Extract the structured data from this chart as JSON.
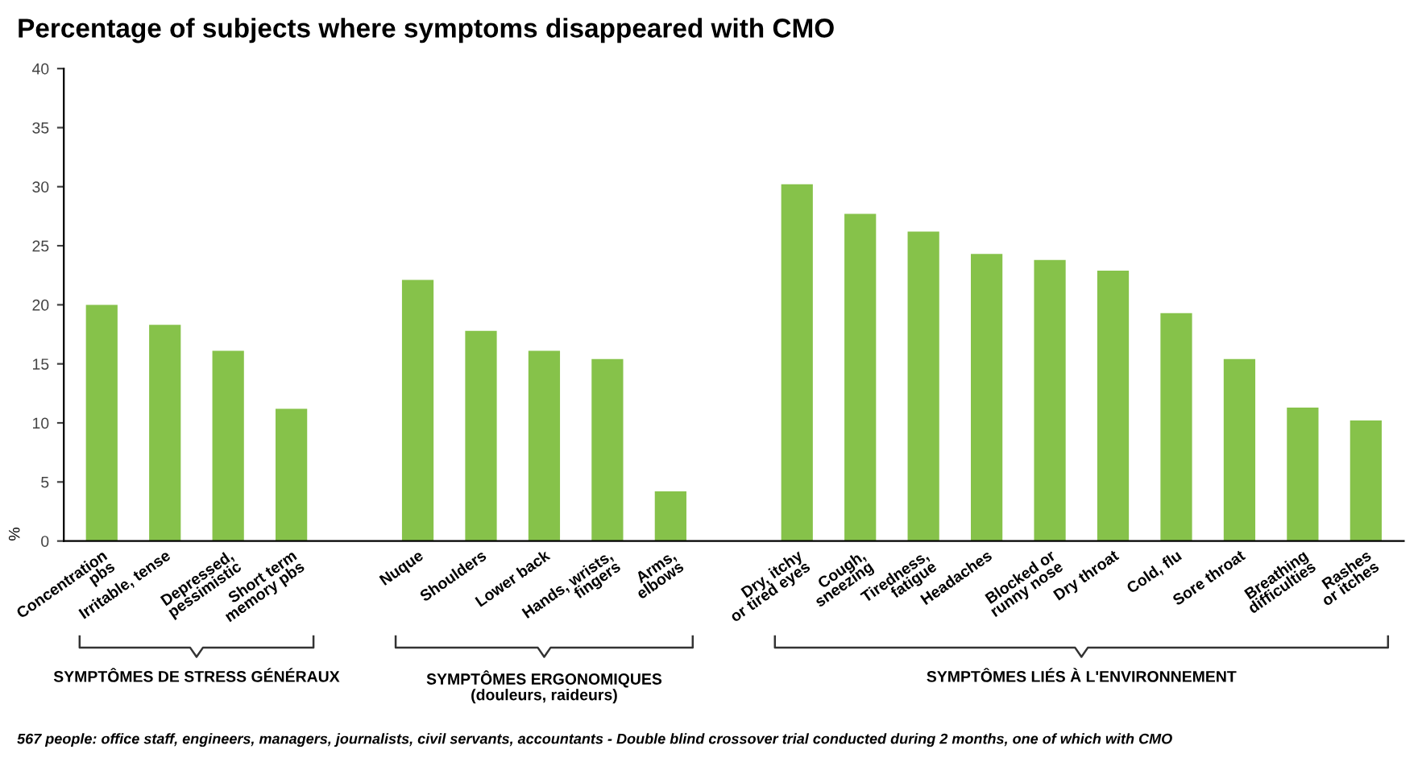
{
  "chart_data": {
    "type": "bar",
    "title": "Percentage of subjects where symptoms disappeared with CMO",
    "ylabel": "%",
    "categories": [
      "Concentration\npbs",
      "Irritable, tense",
      "Depressed,\npessimistic",
      "Short term\nmemory pbs",
      null,
      "Nuque",
      "Shoulders",
      "Lower back",
      "Hands, wrists,\nfingers",
      "Arms,\nelbows",
      null,
      "Dry, itchy\nor tired eyes",
      "Cough,\nsneezing",
      "Tiredness,\nfatigue",
      "Headaches",
      "Blocked or\nrunny nose",
      "Dry throat",
      "Cold, flu",
      "Sore throat",
      "Breathing\ndifficulties",
      "Rashes\nor itches"
    ],
    "values": [
      20,
      18.3,
      16.1,
      11.2,
      null,
      22.1,
      17.8,
      16.1,
      15.4,
      4.2,
      null,
      30.2,
      27.7,
      26.2,
      24.3,
      23.8,
      22.9,
      19.3,
      15.4,
      11.3,
      10.2
    ],
    "color": "#86c24a",
    "ylim": [
      0,
      40
    ],
    "yticks": [
      0,
      5,
      10,
      15,
      20,
      25,
      30,
      35,
      40
    ],
    "grid": false,
    "annotations": [
      "SYMPTÔMES DE STRESS GÉNÉRAUX",
      "SYMPTÔMES ERGONOMIQUES\n(douleurs, raideurs)",
      "SYMPTÔMES LIÉS À L'ENVIRONNEMENT",
      "567 people: office staff, engineers, managers, journalists, civil servants, accountants - Double blind crossover trial conducted during 2 months, one of which with CMO"
    ]
  }
}
